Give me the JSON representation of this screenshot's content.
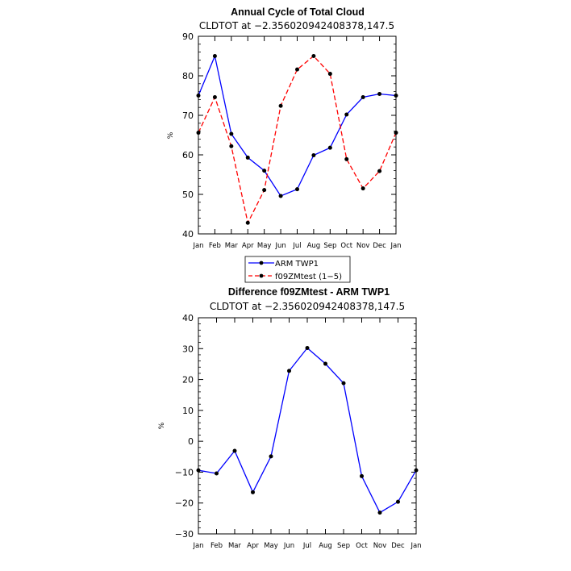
{
  "chart_data": [
    {
      "type": "line",
      "title": "Annual Cycle of Total Cloud",
      "subtitle": "CLDTOT at −2.356020942408378,147.5",
      "xlabel": "",
      "ylabel": "%",
      "categories": [
        "Jan",
        "Feb",
        "Mar",
        "Apr",
        "May",
        "Jun",
        "Jul",
        "Aug",
        "Sep",
        "Oct",
        "Nov",
        "Dec",
        "Jan"
      ],
      "ylim": [
        40,
        90
      ],
      "yticks": [
        "40",
        "50",
        "60",
        "70",
        "80",
        "90"
      ],
      "series": [
        {
          "name": "ARM TWP1",
          "color": "#0000ff",
          "dash": "solid",
          "values": [
            75.0,
            85.0,
            65.3,
            59.3,
            56.0,
            49.6,
            51.3,
            59.9,
            61.8,
            70.2,
            74.6,
            75.4,
            75.0
          ]
        },
        {
          "name": "f09ZMtest (1−5)",
          "color": "#ff0000",
          "dash": "dashed",
          "values": [
            65.6,
            74.6,
            62.2,
            42.8,
            51.1,
            72.4,
            81.6,
            85.0,
            80.5,
            58.9,
            51.5,
            55.9,
            65.6
          ]
        }
      ],
      "legend": "below"
    },
    {
      "type": "line",
      "title": "Difference f09ZMtest - ARM TWP1",
      "subtitle": "CLDTOT at −2.356020942408378,147.5",
      "xlabel": "",
      "ylabel": "%",
      "categories": [
        "Jan",
        "Feb",
        "Mar",
        "Apr",
        "May",
        "Jun",
        "Jul",
        "Aug",
        "Sep",
        "Oct",
        "Nov",
        "Dec",
        "Jan"
      ],
      "ylim": [
        -30,
        40
      ],
      "yticks": [
        "−30",
        "−20",
        "−10",
        "0",
        "10",
        "20",
        "30",
        "40"
      ],
      "series": [
        {
          "name": "Difference",
          "color": "#0000ff",
          "dash": "solid",
          "values": [
            -9.4,
            -10.4,
            -3.1,
            -16.5,
            -4.9,
            22.8,
            30.2,
            25.1,
            18.8,
            -11.3,
            -23.1,
            -19.6,
            -9.4
          ]
        }
      ]
    }
  ]
}
